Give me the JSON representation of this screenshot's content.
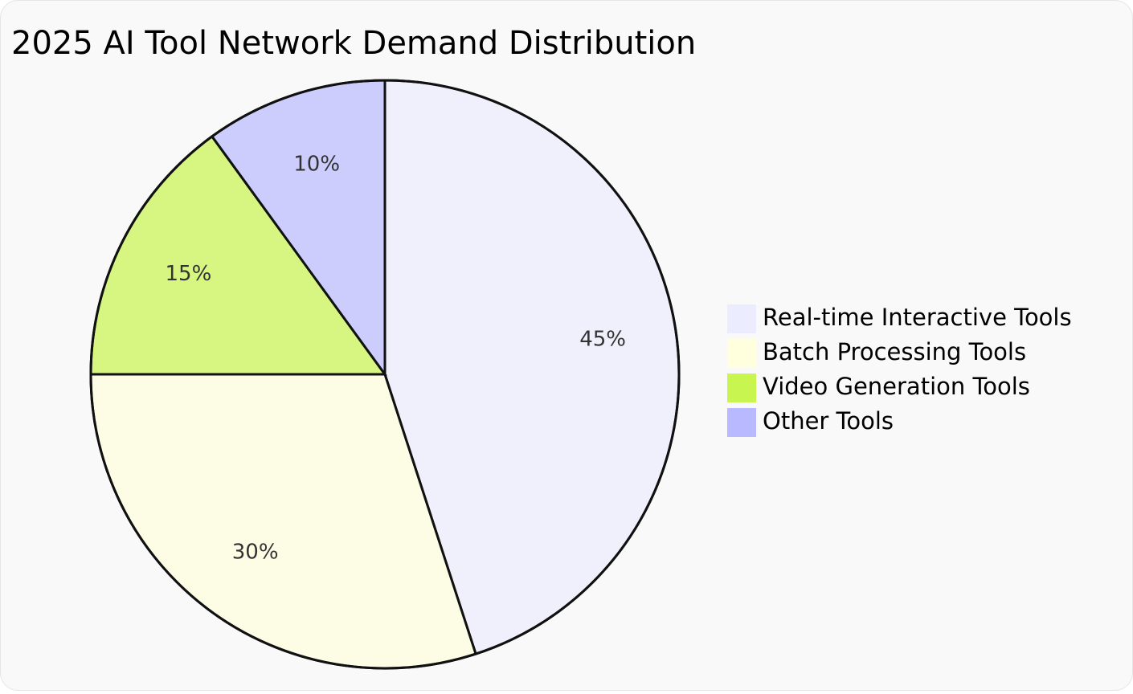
{
  "chart_data": {
    "type": "pie",
    "title": "2025 AI Tool Network Demand Distribution",
    "categories": [
      "Real-time Interactive Tools",
      "Batch Processing Tools",
      "Video Generation Tools",
      "Other Tools"
    ],
    "values": [
      45,
      30,
      15,
      10
    ],
    "value_labels": [
      "45%",
      "30%",
      "15%",
      "10%"
    ],
    "colors": [
      "#ececff",
      "#ffffde",
      "#c8f54f",
      "#b9b9ff"
    ]
  }
}
